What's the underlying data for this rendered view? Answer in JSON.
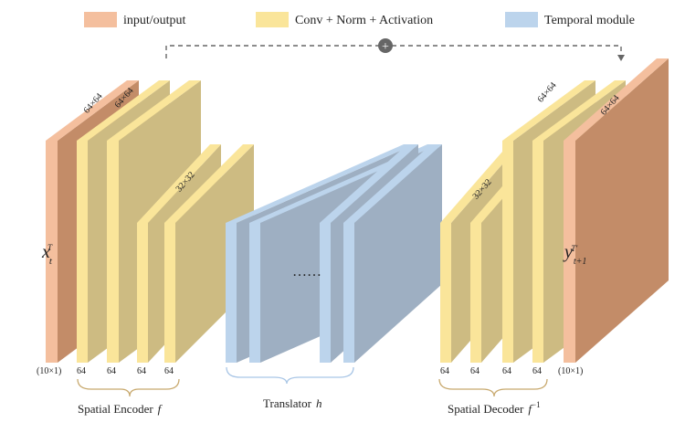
{
  "legend": {
    "io": {
      "label": "input/output",
      "color": "#f4bf9e"
    },
    "conv": {
      "label": "Conv + Norm + Activation",
      "color": "#fae59a"
    },
    "temporal": {
      "label": "Temporal module",
      "color": "#bcd4ec"
    }
  },
  "encoder": {
    "input_dim": "64×64",
    "block1_dim": "64×64",
    "block2_dim": "32×32",
    "input_channels": "(10×1)",
    "channels": [
      "64",
      "64",
      "64",
      "64"
    ],
    "label": "Spatial Encoder",
    "label_symbol": "f"
  },
  "translator": {
    "ellipsis": "……",
    "label": "Translator",
    "label_symbol": "h"
  },
  "decoder": {
    "block1_dim": "32×32",
    "block2_dim": "64×64",
    "output_dim": "64×64",
    "channels": [
      "64",
      "64",
      "64",
      "64"
    ],
    "output_channels": "(10×1)",
    "label": "Spatial Decoder",
    "label_symbol": "f",
    "label_sup": "−1"
  },
  "input_symbol": {
    "base": "x",
    "sub": "t",
    "sup": "T"
  },
  "output_symbol": {
    "base": "y",
    "sub": "t+1",
    "sup": "T′"
  },
  "skip_symbol": "+",
  "colors": {
    "io_side": "#c38c68",
    "conv_side": "#cdbb82",
    "temporal_side": "#9eafc2",
    "bracket": "#c8a96e",
    "bracket_blue": "#a9c6e6",
    "skip": "#666666"
  }
}
